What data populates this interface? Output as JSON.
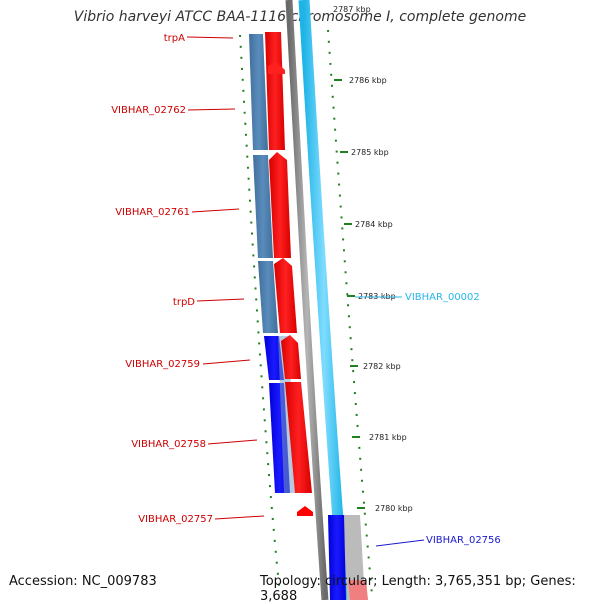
{
  "map": {
    "title": "Vibrio harveyi ATCC BAA-1116 chromosome I, complete genome",
    "accession": "Accession: NC_009783",
    "summary": "Topology: circular; Length: 3,765,351 bp; Genes: 3,688",
    "scale_labels": [
      "2787 kbp",
      "2786 kbp",
      "2785 kbp",
      "2784 kbp",
      "2783 kbp",
      "2782 kbp",
      "2781 kbp",
      "2780 kbp"
    ],
    "colors": {
      "gene_forward": "#ff0000",
      "cds_reverse_steel": "#4682b4",
      "cds_reverse_blue": "#0000ff",
      "other_strand": "#38c8f0",
      "label_red": "#cc0000",
      "label_cyan": "#29b6e8",
      "label_blue": "#1a1acc",
      "tick_green": "#207020"
    },
    "gene_labels": [
      {
        "text": "trpA",
        "color": "#cc0000"
      },
      {
        "text": "VIBHAR_02762",
        "color": "#cc0000"
      },
      {
        "text": "VIBHAR_02761",
        "color": "#cc0000"
      },
      {
        "text": "trpD",
        "color": "#cc0000"
      },
      {
        "text": "VIBHAR_02759",
        "color": "#cc0000"
      },
      {
        "text": "VIBHAR_02758",
        "color": "#cc0000"
      },
      {
        "text": "VIBHAR_02757",
        "color": "#cc0000"
      },
      {
        "text": "VIBHAR_00002",
        "color": "#29b6e8"
      },
      {
        "text": "VIBHAR_02756",
        "color": "#1a1acc"
      }
    ]
  }
}
